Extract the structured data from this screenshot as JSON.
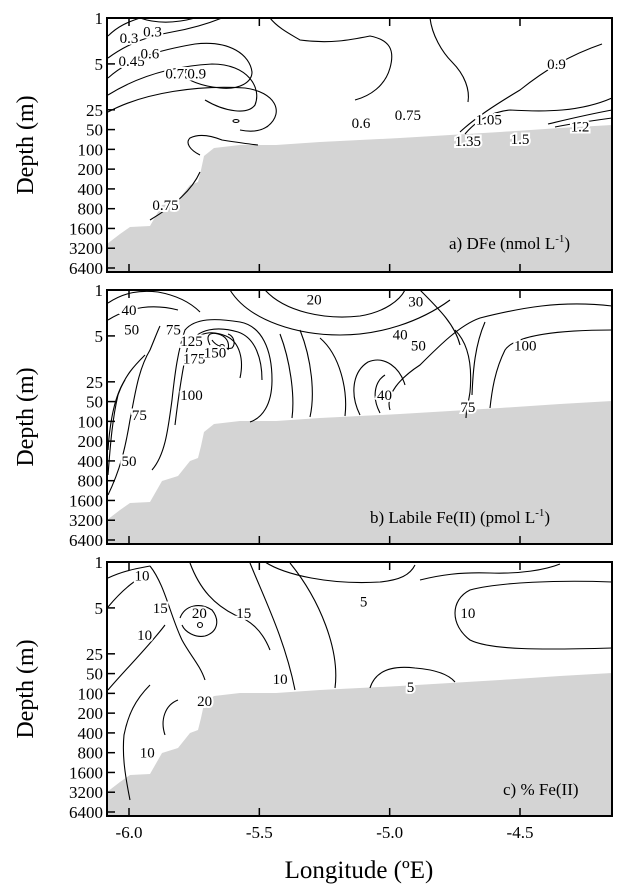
{
  "chart_data": [
    {
      "type": "contour",
      "panel_label": "a) DFe (nmol L",
      "panel_label_sup": "-1",
      "panel_label_end": ")",
      "ylabel": "Depth (m)",
      "y_ticks": [
        "1",
        "5",
        "25",
        "50",
        "100",
        "200",
        "400",
        "800",
        "1600",
        "3200",
        "6400"
      ],
      "xlim": [
        -6.05,
        -4.2
      ],
      "contour_levels": [
        "0.3",
        "0.45",
        "0.6",
        "0.75",
        "0.9",
        "1.05",
        "1.2",
        "1.35",
        "1.5"
      ],
      "contour_labels": [
        {
          "text": "0.3",
          "x": -6.0,
          "depth": 2
        },
        {
          "text": "0.3",
          "x": -5.91,
          "depth": 1.6
        },
        {
          "text": "0.45",
          "x": -5.99,
          "depth": 4.5
        },
        {
          "text": "0.6",
          "x": -5.92,
          "depth": 3.5
        },
        {
          "text": "0.75",
          "x": -5.81,
          "depth": 7
        },
        {
          "text": "0.9",
          "x": -5.74,
          "depth": 7
        },
        {
          "text": "0.6",
          "x": -5.11,
          "depth": 40
        },
        {
          "text": "0.75",
          "x": -4.93,
          "depth": 30
        },
        {
          "text": "0.9",
          "x": -4.36,
          "depth": 5
        },
        {
          "text": "1.05",
          "x": -4.62,
          "depth": 35
        },
        {
          "text": "1.2",
          "x": -4.27,
          "depth": 45
        },
        {
          "text": "1.35",
          "x": -4.7,
          "depth": 75
        },
        {
          "text": "1.5",
          "x": -4.5,
          "depth": 70
        },
        {
          "text": "0.75",
          "x": -5.86,
          "depth": 700
        }
      ]
    },
    {
      "type": "contour",
      "panel_label": "b) Labile Fe(II) (pmol L",
      "panel_label_sup": "-1",
      "panel_label_end": ")",
      "ylabel": "Depth (m)",
      "y_ticks": [
        "1",
        "5",
        "25",
        "50",
        "100",
        "200",
        "400",
        "800",
        "1600",
        "3200",
        "6400"
      ],
      "xlim": [
        -6.05,
        -4.2
      ],
      "contour_levels": [
        "20",
        "30",
        "40",
        "50",
        "75",
        "100",
        "125",
        "150",
        "175"
      ],
      "contour_labels": [
        {
          "text": "40",
          "x": -6.0,
          "depth": 2
        },
        {
          "text": "50",
          "x": -5.99,
          "depth": 4
        },
        {
          "text": "75",
          "x": -5.83,
          "depth": 4
        },
        {
          "text": "125",
          "x": -5.76,
          "depth": 6
        },
        {
          "text": "175",
          "x": -5.75,
          "depth": 11
        },
        {
          "text": "150",
          "x": -5.67,
          "depth": 9
        },
        {
          "text": "100",
          "x": -5.76,
          "depth": 40
        },
        {
          "text": "75",
          "x": -5.96,
          "depth": 80
        },
        {
          "text": "50",
          "x": -6.0,
          "depth": 400
        },
        {
          "text": "20",
          "x": -5.29,
          "depth": 1.4
        },
        {
          "text": "30",
          "x": -4.9,
          "depth": 1.5
        },
        {
          "text": "40",
          "x": -4.96,
          "depth": 4.8
        },
        {
          "text": "50",
          "x": -4.89,
          "depth": 7
        },
        {
          "text": "40",
          "x": -5.02,
          "depth": 40
        },
        {
          "text": "75",
          "x": -4.7,
          "depth": 60
        },
        {
          "text": "100",
          "x": -4.48,
          "depth": 7
        }
      ]
    },
    {
      "type": "contour",
      "panel_label": "c) % Fe(II)",
      "panel_label_sup": "",
      "panel_label_end": "",
      "ylabel": "Depth (m)",
      "y_ticks": [
        "1",
        "5",
        "25",
        "50",
        "100",
        "200",
        "400",
        "800",
        "1600",
        "3200",
        "6400"
      ],
      "x_ticks": [
        "-6.0",
        "-5.5",
        "-5.0",
        "-4.5"
      ],
      "xlabel": "Longitude (ºE)",
      "xlim": [
        -6.05,
        -4.2
      ],
      "contour_levels": [
        "5",
        "10",
        "15",
        "20"
      ],
      "contour_labels": [
        {
          "text": "10",
          "x": -5.95,
          "depth": 1.6
        },
        {
          "text": "15",
          "x": -5.88,
          "depth": 5
        },
        {
          "text": "10",
          "x": -5.94,
          "depth": 13
        },
        {
          "text": "20",
          "x": -5.73,
          "depth": 6
        },
        {
          "text": "15",
          "x": -5.56,
          "depth": 6
        },
        {
          "text": "10",
          "x": -5.42,
          "depth": 60
        },
        {
          "text": "20",
          "x": -5.71,
          "depth": 130
        },
        {
          "text": "10",
          "x": -5.93,
          "depth": 800
        },
        {
          "text": "5",
          "x": -5.1,
          "depth": 4
        },
        {
          "text": "10",
          "x": -4.7,
          "depth": 6
        },
        {
          "text": "5",
          "x": -4.92,
          "depth": 80
        }
      ]
    }
  ]
}
